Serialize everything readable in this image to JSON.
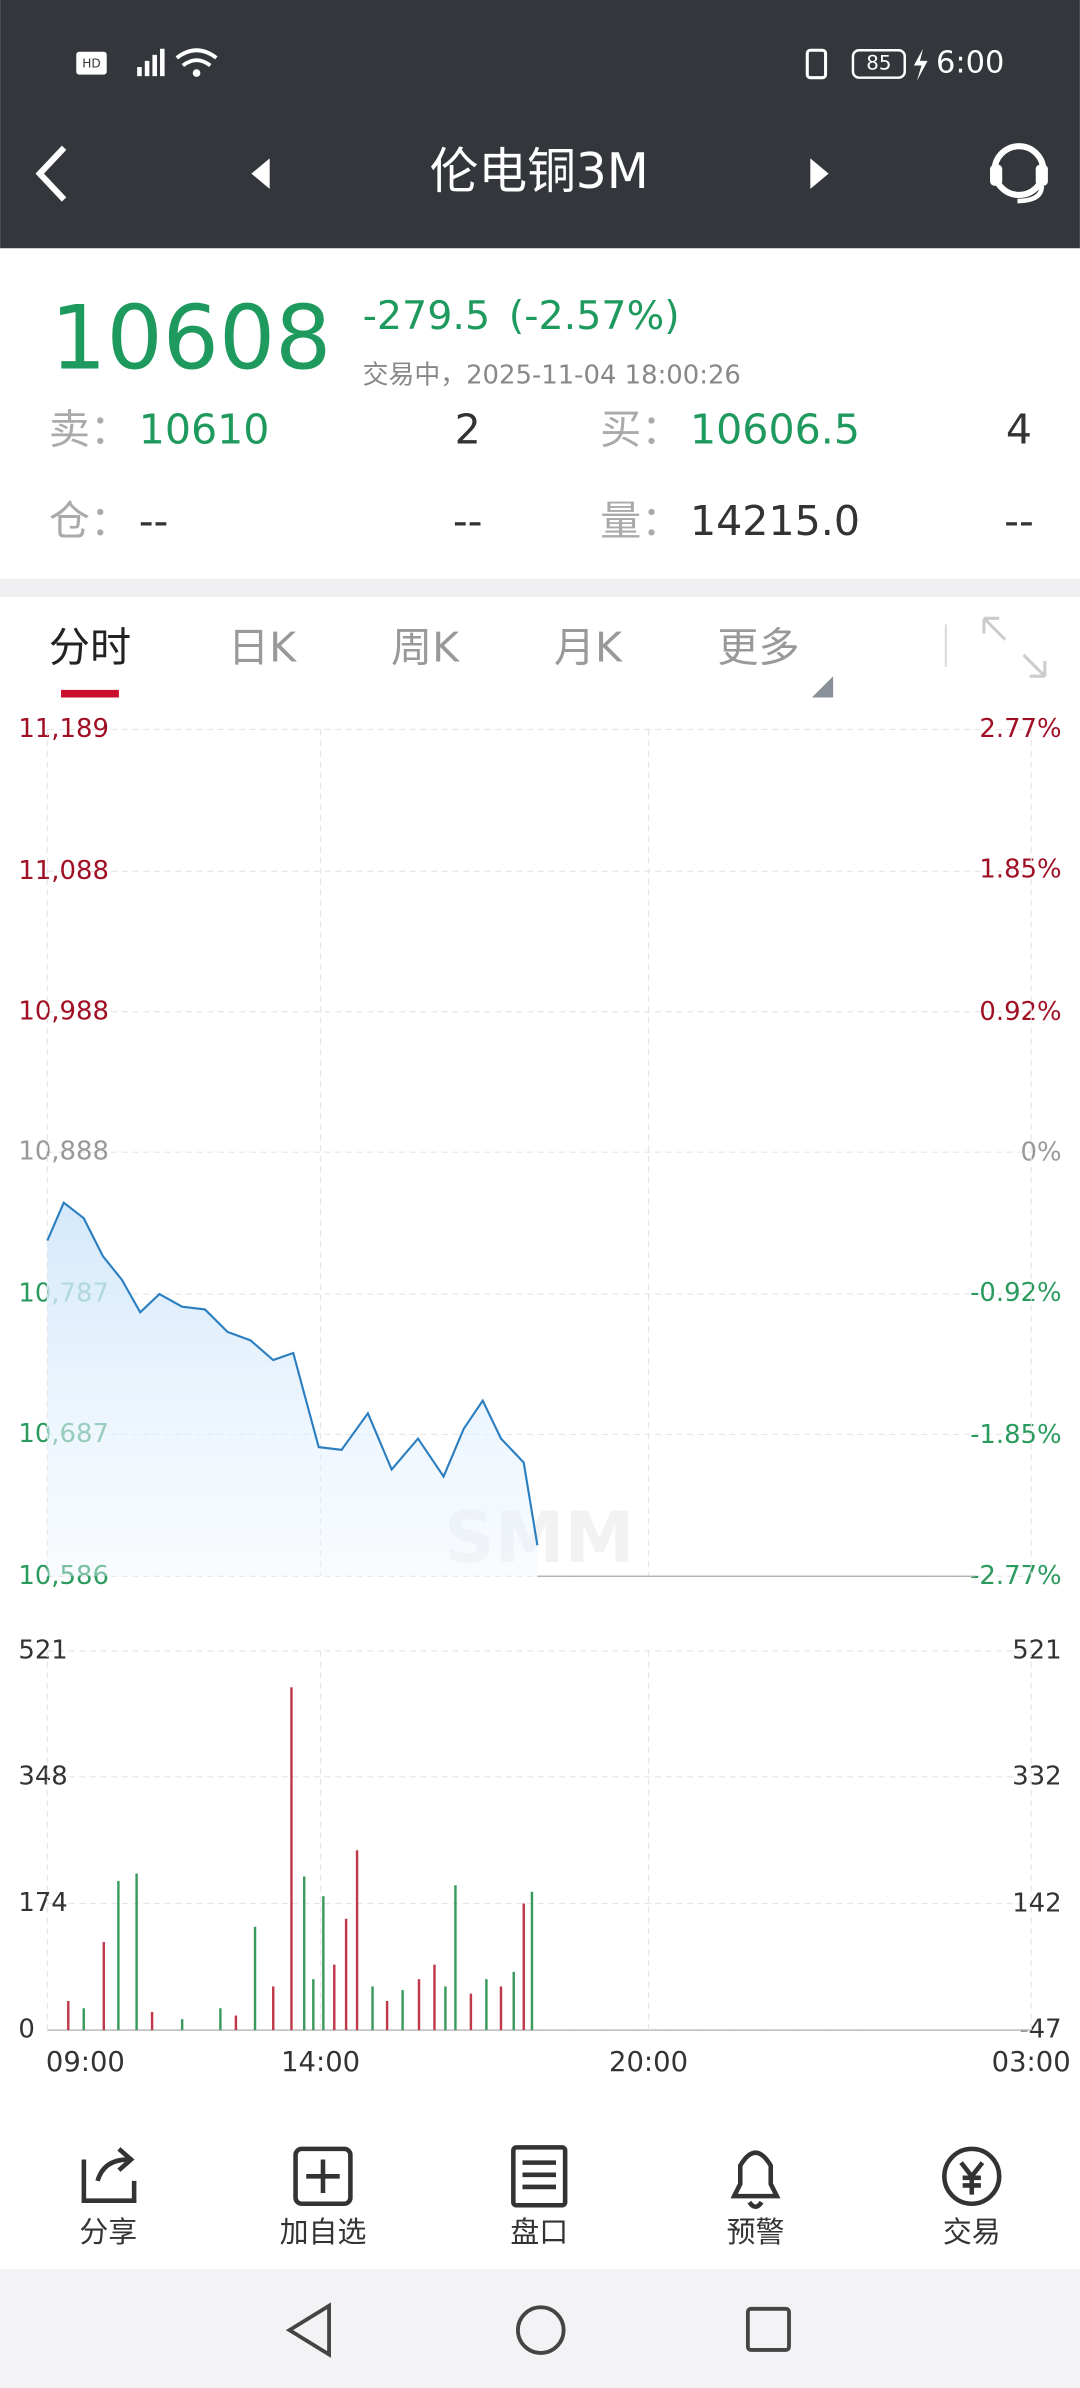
{
  "status_bar": {
    "time": "6:00",
    "battery": "85"
  },
  "header": {
    "title": "伦电铜3M"
  },
  "quote": {
    "price": "10608",
    "change": "-279.5",
    "change_pct": "(-2.57%)",
    "status": "交易中，2025-11-04 18:00:26",
    "rows": [
      [
        "卖：",
        "10610",
        "2",
        "买：",
        "10606.5",
        "4"
      ],
      [
        "仓：",
        "--",
        "--",
        "量：",
        "14215.0",
        "--"
      ]
    ]
  },
  "tabs": [
    "分时",
    "日K",
    "周K",
    "月K",
    "更多"
  ],
  "chart_data": [
    {
      "type": "line",
      "color": "#2b7fc0",
      "x": [
        "09:00",
        "09:18",
        "09:40",
        "10:01",
        "10:22",
        "10:42",
        "11:03",
        "11:28",
        "11:53",
        "12:18",
        "12:43",
        "13:08",
        "13:30",
        "13:42",
        "13:58",
        "14:23",
        "14:52",
        "15:18",
        "15:47",
        "16:15",
        "16:37",
        "16:58",
        "17:18",
        "17:43",
        "17:58"
      ],
      "values": [
        10825,
        10852,
        10841,
        10814,
        10797,
        10774,
        10787,
        10778,
        10776,
        10760,
        10754,
        10740,
        10745,
        10716,
        10678,
        10676,
        10702,
        10662,
        10684,
        10657,
        10691,
        10711,
        10684,
        10667,
        10608
      ],
      "ylim": [
        10586,
        11189
      ],
      "yticks": [
        {
          "value": 11189,
          "label": "11,189"
        },
        {
          "value": 11088,
          "label": "11,088"
        },
        {
          "value": 10988,
          "label": "10,988"
        },
        {
          "value": 10888,
          "label": "10,888"
        },
        {
          "value": 10787,
          "label": "10,787"
        },
        {
          "value": 10687,
          "label": "10,687"
        },
        {
          "value": 10586,
          "label": "10,586"
        }
      ],
      "y2lim": [
        -2.77,
        2.77
      ],
      "y2ticks": [
        {
          "value": 2.77,
          "label": "2.77%"
        },
        {
          "value": 1.85,
          "label": "1.85%"
        },
        {
          "value": 0.92,
          "label": "0.92%"
        },
        {
          "value": 0,
          "label": "0%"
        },
        {
          "value": -0.92,
          "label": "-0.92%"
        },
        {
          "value": -1.85,
          "label": "-1.85%"
        },
        {
          "value": -2.77,
          "label": "-2.77%"
        }
      ],
      "grid": true
    },
    {
      "type": "bar",
      "x": [
        "09:23",
        "09:40",
        "10:02",
        "10:18",
        "10:38",
        "10:55",
        "11:28",
        "12:10",
        "12:27",
        "12:48",
        "13:08",
        "13:28",
        "13:42",
        "13:52",
        "14:03",
        "14:15",
        "14:28",
        "14:40",
        "14:57",
        "15:13",
        "15:30",
        "15:48",
        "16:05",
        "16:17",
        "16:28",
        "16:45",
        "17:02",
        "17:18",
        "17:32",
        "17:43",
        "17:52"
      ],
      "values": [
        40,
        30,
        121,
        205,
        215,
        25,
        15,
        30,
        20,
        142,
        60,
        471,
        211,
        70,
        184,
        90,
        153,
        247,
        60,
        40,
        55,
        70,
        90,
        60,
        199,
        50,
        70,
        60,
        80,
        174,
        190
      ],
      "colors": [
        "#c0394a",
        "#3a9a5c",
        "#c0394a",
        "#3a9a5c",
        "#3a9a5c",
        "#c0394a",
        "#3a9a5c",
        "#3a9a5c",
        "#c0394a",
        "#3a9a5c",
        "#c0394a",
        "#c0394a",
        "#3a9a5c",
        "#3a9a5c",
        "#3a9a5c",
        "#c0394a",
        "#c0394a",
        "#c0394a",
        "#3a9a5c",
        "#c0394a",
        "#3a9a5c",
        "#c0394a",
        "#c0394a",
        "#3a9a5c",
        "#3a9a5c",
        "#c0394a",
        "#3a9a5c",
        "#c0394a",
        "#3a9a5c",
        "#c0394a",
        "#3a9a5c"
      ],
      "ylim": [
        0,
        521
      ],
      "yticks": [
        0,
        174,
        348,
        521
      ],
      "y2lim": [
        -47,
        521
      ],
      "y2ticks": [
        -47,
        142,
        332,
        521
      ],
      "xlim": [
        "09:00",
        "03:00"
      ],
      "xticks": [
        "09:00",
        "14:00",
        "20:00",
        "03:00"
      ],
      "grid": true
    }
  ],
  "toolbar": [
    "分享",
    "加自选",
    "盘口",
    "预警",
    "交易"
  ]
}
